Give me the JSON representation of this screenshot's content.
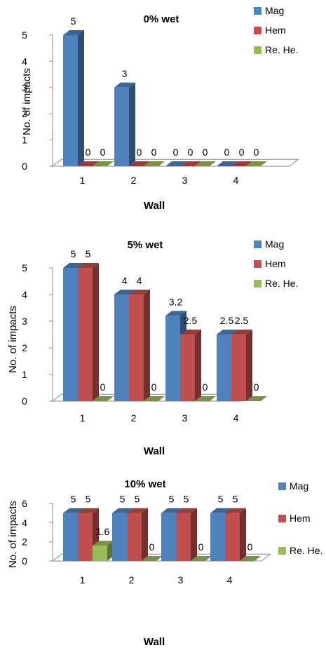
{
  "chart_data": [
    {
      "type": "bar",
      "title": "0% wet",
      "xlabel": "Wall",
      "ylabel": "No. of impacts",
      "categories": [
        "1",
        "2",
        "3",
        "4"
      ],
      "ylim": [
        0,
        5
      ],
      "yticks": [
        "0",
        "1",
        "2",
        "3",
        "4",
        "5"
      ],
      "series": [
        {
          "name": "Mag",
          "values": [
            5,
            3,
            0,
            0
          ],
          "labels": [
            "5",
            "3",
            "0",
            "0"
          ]
        },
        {
          "name": "Hem",
          "values": [
            0,
            0,
            0,
            0
          ],
          "labels": [
            "0",
            "0",
            "0",
            "0"
          ]
        },
        {
          "name": "Re. He.",
          "values": [
            0,
            0,
            0,
            0
          ],
          "labels": [
            "0",
            "0",
            "0",
            "0"
          ]
        }
      ],
      "legend_position": "top-right"
    },
    {
      "type": "bar",
      "title": "5% wet",
      "xlabel": "Wall",
      "ylabel": "No. of impacts",
      "categories": [
        "1",
        "2",
        "3",
        "4"
      ],
      "ylim": [
        0,
        5
      ],
      "yticks": [
        "0",
        "1",
        "2",
        "3",
        "4",
        "5"
      ],
      "series": [
        {
          "name": "Mag",
          "values": [
            5,
            4,
            3.2,
            2.5
          ],
          "labels": [
            "5",
            "4",
            "3.2",
            "2.5"
          ]
        },
        {
          "name": "Hem",
          "values": [
            5,
            4,
            2.5,
            2.5
          ],
          "labels": [
            "5",
            "4",
            "2.5",
            "2.5"
          ]
        },
        {
          "name": "Re. He.",
          "values": [
            0,
            0,
            0,
            0
          ],
          "labels": [
            "0",
            "0",
            "0",
            "0"
          ]
        }
      ],
      "legend_position": "top-right"
    },
    {
      "type": "bar",
      "title": "10% wet",
      "xlabel": "Wall",
      "ylabel": "No. of impacts",
      "categories": [
        "1",
        "2",
        "3",
        "4"
      ],
      "ylim": [
        0,
        6
      ],
      "yticks": [
        "0",
        "2",
        "4",
        "6"
      ],
      "series": [
        {
          "name": "Mag",
          "values": [
            5,
            5,
            5,
            5
          ],
          "labels": [
            "5",
            "5",
            "5",
            "5"
          ]
        },
        {
          "name": "Hem",
          "values": [
            5,
            5,
            5,
            5
          ],
          "labels": [
            "5",
            "5",
            "5",
            "5"
          ]
        },
        {
          "name": "Re. He.",
          "values": [
            1.6,
            0,
            0,
            0
          ],
          "labels": [
            "1.6",
            "0",
            "0",
            "0"
          ]
        }
      ],
      "legend_position": "top-right"
    }
  ],
  "colors": {
    "Mag": "#4f81bd",
    "Hem": "#c0504d",
    "Re. He.": "#9bbb59"
  }
}
